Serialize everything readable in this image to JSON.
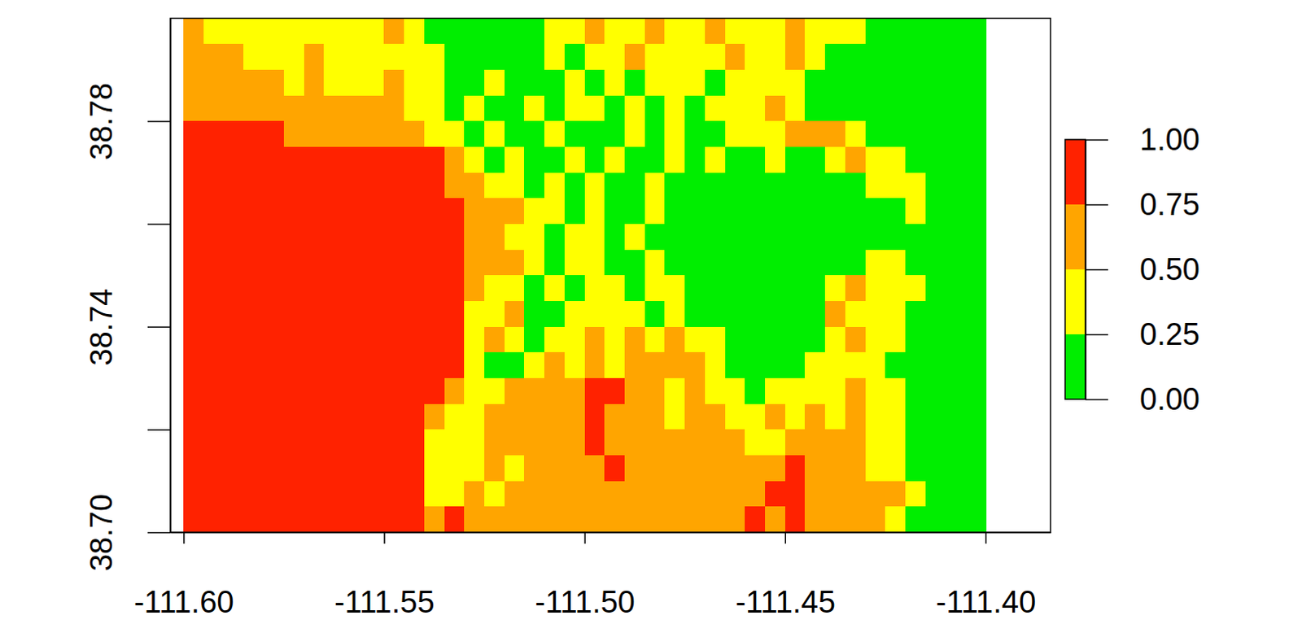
{
  "chart_data": {
    "type": "heatmap",
    "xlim": [
      -111.6033,
      -111.3838
    ],
    "ylim": [
      38.7,
      38.8
    ],
    "xticks": [
      {
        "value": -111.6,
        "label": "-111.60"
      },
      {
        "value": -111.55,
        "label": "-111.55"
      },
      {
        "value": -111.5,
        "label": "-111.50"
      },
      {
        "value": -111.45,
        "label": "-111.45"
      },
      {
        "value": -111.4,
        "label": "-111.40"
      }
    ],
    "yticks": [
      {
        "value": 38.7,
        "label": "38.70"
      },
      {
        "value": 38.72,
        "label": null
      },
      {
        "value": 38.74,
        "label": "38.74"
      },
      {
        "value": 38.76,
        "label": null
      },
      {
        "value": 38.78,
        "label": "38.78"
      }
    ],
    "x_bins": [
      -111.6,
      -111.595,
      -111.59,
      -111.585,
      -111.58,
      -111.575,
      -111.57,
      -111.565,
      -111.56,
      -111.555,
      -111.55,
      -111.545,
      -111.54,
      -111.535,
      -111.53,
      -111.525,
      -111.52,
      -111.515,
      -111.51,
      -111.505,
      -111.5,
      -111.495,
      -111.49,
      -111.485,
      -111.48,
      -111.475,
      -111.47,
      -111.465,
      -111.46,
      -111.455,
      -111.45,
      -111.445,
      -111.44,
      -111.435,
      -111.43,
      -111.425,
      -111.42,
      -111.415,
      -111.41,
      -111.405,
      -111.4
    ],
    "y_bins": [
      38.8,
      38.795,
      38.79,
      38.785,
      38.78,
      38.775,
      38.77,
      38.765,
      38.76,
      38.755,
      38.75,
      38.745,
      38.74,
      38.735,
      38.73,
      38.725,
      38.72,
      38.715,
      38.71,
      38.705,
      38.7
    ],
    "cells": [
      [
        0.6,
        0.4,
        0.4,
        0.4,
        0.4,
        0.4,
        0.4,
        0.4,
        0.4,
        0.4,
        0.6,
        0.4,
        0.1,
        0.1,
        0.1,
        0.1,
        0.1,
        0.1,
        0.4,
        0.4,
        0.6,
        0.4,
        0.4,
        0.6,
        0.4,
        0.4,
        0.6,
        0.4,
        0.4,
        0.4,
        0.6,
        0.4,
        0.4,
        0.4,
        0.1,
        0.1,
        0.1,
        0.1,
        0.1,
        0.1
      ],
      [
        0.6,
        0.6,
        0.6,
        0.4,
        0.4,
        0.4,
        0.6,
        0.4,
        0.4,
        0.4,
        0.4,
        0.4,
        0.4,
        0.1,
        0.1,
        0.1,
        0.1,
        0.1,
        0.4,
        0.1,
        0.4,
        0.4,
        0.6,
        0.4,
        0.4,
        0.4,
        0.4,
        0.6,
        0.4,
        0.4,
        0.6,
        0.4,
        0.1,
        0.1,
        0.1,
        0.1,
        0.1,
        0.1,
        0.1,
        0.1
      ],
      [
        0.6,
        0.6,
        0.6,
        0.6,
        0.6,
        0.4,
        0.6,
        0.4,
        0.4,
        0.4,
        0.6,
        0.4,
        0.4,
        0.1,
        0.1,
        0.4,
        0.1,
        0.1,
        0.1,
        0.4,
        0.1,
        0.4,
        0.1,
        0.4,
        0.4,
        0.4,
        0.1,
        0.4,
        0.4,
        0.4,
        0.4,
        0.1,
        0.1,
        0.1,
        0.1,
        0.1,
        0.1,
        0.1,
        0.1,
        0.1
      ],
      [
        0.6,
        0.6,
        0.6,
        0.6,
        0.6,
        0.6,
        0.6,
        0.6,
        0.6,
        0.6,
        0.6,
        0.4,
        0.4,
        0.1,
        0.4,
        0.1,
        0.1,
        0.4,
        0.1,
        0.4,
        0.4,
        0.1,
        0.4,
        0.1,
        0.4,
        0.1,
        0.4,
        0.4,
        0.4,
        0.6,
        0.4,
        0.1,
        0.1,
        0.1,
        0.1,
        0.1,
        0.1,
        0.1,
        0.1,
        0.1
      ],
      [
        0.9,
        0.9,
        0.9,
        0.9,
        0.9,
        0.6,
        0.6,
        0.6,
        0.6,
        0.6,
        0.6,
        0.6,
        0.4,
        0.4,
        0.1,
        0.4,
        0.1,
        0.1,
        0.4,
        0.1,
        0.1,
        0.1,
        0.4,
        0.1,
        0.4,
        0.1,
        0.1,
        0.4,
        0.4,
        0.4,
        0.6,
        0.6,
        0.6,
        0.4,
        0.1,
        0.1,
        0.1,
        0.1,
        0.1,
        0.1
      ],
      [
        0.9,
        0.9,
        0.9,
        0.9,
        0.9,
        0.9,
        0.9,
        0.9,
        0.9,
        0.9,
        0.9,
        0.9,
        0.9,
        0.6,
        0.4,
        0.1,
        0.4,
        0.1,
        0.1,
        0.4,
        0.1,
        0.4,
        0.1,
        0.1,
        0.4,
        0.1,
        0.4,
        0.1,
        0.1,
        0.4,
        0.1,
        0.1,
        0.4,
        0.6,
        0.4,
        0.4,
        0.1,
        0.1,
        0.1,
        0.1
      ],
      [
        0.9,
        0.9,
        0.9,
        0.9,
        0.9,
        0.9,
        0.9,
        0.9,
        0.9,
        0.9,
        0.9,
        0.9,
        0.9,
        0.6,
        0.6,
        0.4,
        0.4,
        0.1,
        0.4,
        0.1,
        0.4,
        0.1,
        0.1,
        0.4,
        0.1,
        0.1,
        0.1,
        0.1,
        0.1,
        0.1,
        0.1,
        0.1,
        0.1,
        0.1,
        0.4,
        0.4,
        0.4,
        0.1,
        0.1,
        0.1
      ],
      [
        0.9,
        0.9,
        0.9,
        0.9,
        0.9,
        0.9,
        0.9,
        0.9,
        0.9,
        0.9,
        0.9,
        0.9,
        0.9,
        0.9,
        0.6,
        0.6,
        0.6,
        0.4,
        0.4,
        0.1,
        0.4,
        0.1,
        0.1,
        0.4,
        0.1,
        0.1,
        0.1,
        0.1,
        0.1,
        0.1,
        0.1,
        0.1,
        0.1,
        0.1,
        0.1,
        0.1,
        0.4,
        0.1,
        0.1,
        0.1
      ],
      [
        0.9,
        0.9,
        0.9,
        0.9,
        0.9,
        0.9,
        0.9,
        0.9,
        0.9,
        0.9,
        0.9,
        0.9,
        0.9,
        0.9,
        0.6,
        0.6,
        0.4,
        0.4,
        0.1,
        0.4,
        0.4,
        0.1,
        0.4,
        0.1,
        0.1,
        0.1,
        0.1,
        0.1,
        0.1,
        0.1,
        0.1,
        0.1,
        0.1,
        0.1,
        0.1,
        0.1,
        0.1,
        0.1,
        0.1,
        0.1
      ],
      [
        0.9,
        0.9,
        0.9,
        0.9,
        0.9,
        0.9,
        0.9,
        0.9,
        0.9,
        0.9,
        0.9,
        0.9,
        0.9,
        0.9,
        0.6,
        0.6,
        0.6,
        0.4,
        0.1,
        0.4,
        0.4,
        0.1,
        0.1,
        0.4,
        0.1,
        0.1,
        0.1,
        0.1,
        0.1,
        0.1,
        0.1,
        0.1,
        0.1,
        0.1,
        0.4,
        0.4,
        0.1,
        0.1,
        0.1,
        0.1
      ],
      [
        0.9,
        0.9,
        0.9,
        0.9,
        0.9,
        0.9,
        0.9,
        0.9,
        0.9,
        0.9,
        0.9,
        0.9,
        0.9,
        0.9,
        0.6,
        0.4,
        0.4,
        0.1,
        0.4,
        0.1,
        0.4,
        0.4,
        0.1,
        0.4,
        0.4,
        0.1,
        0.1,
        0.1,
        0.1,
        0.1,
        0.1,
        0.1,
        0.4,
        0.6,
        0.4,
        0.4,
        0.4,
        0.1,
        0.1,
        0.1
      ],
      [
        0.9,
        0.9,
        0.9,
        0.9,
        0.9,
        0.9,
        0.9,
        0.9,
        0.9,
        0.9,
        0.9,
        0.9,
        0.9,
        0.9,
        0.4,
        0.4,
        0.6,
        0.1,
        0.1,
        0.4,
        0.4,
        0.4,
        0.4,
        0.1,
        0.4,
        0.1,
        0.1,
        0.1,
        0.1,
        0.1,
        0.1,
        0.1,
        0.6,
        0.4,
        0.4,
        0.4,
        0.1,
        0.1,
        0.1,
        0.1
      ],
      [
        0.9,
        0.9,
        0.9,
        0.9,
        0.9,
        0.9,
        0.9,
        0.9,
        0.9,
        0.9,
        0.9,
        0.9,
        0.9,
        0.9,
        0.4,
        0.6,
        0.4,
        0.1,
        0.4,
        0.4,
        0.6,
        0.4,
        0.6,
        0.4,
        0.6,
        0.4,
        0.4,
        0.1,
        0.1,
        0.1,
        0.1,
        0.1,
        0.4,
        0.6,
        0.4,
        0.4,
        0.1,
        0.1,
        0.1,
        0.1
      ],
      [
        0.9,
        0.9,
        0.9,
        0.9,
        0.9,
        0.9,
        0.9,
        0.9,
        0.9,
        0.9,
        0.9,
        0.9,
        0.9,
        0.9,
        0.4,
        0.1,
        0.1,
        0.4,
        0.6,
        0.4,
        0.6,
        0.4,
        0.6,
        0.6,
        0.6,
        0.6,
        0.4,
        0.1,
        0.1,
        0.1,
        0.1,
        0.4,
        0.4,
        0.4,
        0.4,
        0.1,
        0.1,
        0.1,
        0.1,
        0.1
      ],
      [
        0.9,
        0.9,
        0.9,
        0.9,
        0.9,
        0.9,
        0.9,
        0.9,
        0.9,
        0.9,
        0.9,
        0.9,
        0.9,
        0.6,
        0.4,
        0.4,
        0.6,
        0.6,
        0.6,
        0.6,
        0.9,
        0.9,
        0.6,
        0.6,
        0.4,
        0.6,
        0.4,
        0.4,
        0.1,
        0.4,
        0.4,
        0.4,
        0.4,
        0.6,
        0.4,
        0.4,
        0.1,
        0.1,
        0.1,
        0.1
      ],
      [
        0.9,
        0.9,
        0.9,
        0.9,
        0.9,
        0.9,
        0.9,
        0.9,
        0.9,
        0.9,
        0.9,
        0.9,
        0.6,
        0.4,
        0.4,
        0.6,
        0.6,
        0.6,
        0.6,
        0.6,
        0.9,
        0.6,
        0.6,
        0.6,
        0.4,
        0.6,
        0.6,
        0.4,
        0.4,
        0.6,
        0.4,
        0.6,
        0.4,
        0.6,
        0.4,
        0.4,
        0.1,
        0.1,
        0.1,
        0.1
      ],
      [
        0.9,
        0.9,
        0.9,
        0.9,
        0.9,
        0.9,
        0.9,
        0.9,
        0.9,
        0.9,
        0.9,
        0.9,
        0.4,
        0.4,
        0.4,
        0.6,
        0.6,
        0.6,
        0.6,
        0.6,
        0.9,
        0.6,
        0.6,
        0.6,
        0.6,
        0.6,
        0.6,
        0.6,
        0.4,
        0.4,
        0.6,
        0.6,
        0.6,
        0.6,
        0.4,
        0.4,
        0.1,
        0.1,
        0.1,
        0.1
      ],
      [
        0.9,
        0.9,
        0.9,
        0.9,
        0.9,
        0.9,
        0.9,
        0.9,
        0.9,
        0.9,
        0.9,
        0.9,
        0.4,
        0.4,
        0.4,
        0.6,
        0.4,
        0.6,
        0.6,
        0.6,
        0.6,
        0.9,
        0.6,
        0.6,
        0.6,
        0.6,
        0.6,
        0.6,
        0.6,
        0.6,
        0.9,
        0.6,
        0.6,
        0.6,
        0.4,
        0.4,
        0.1,
        0.1,
        0.1,
        0.1
      ],
      [
        0.9,
        0.9,
        0.9,
        0.9,
        0.9,
        0.9,
        0.9,
        0.9,
        0.9,
        0.9,
        0.9,
        0.9,
        0.4,
        0.4,
        0.6,
        0.4,
        0.6,
        0.6,
        0.6,
        0.6,
        0.6,
        0.6,
        0.6,
        0.6,
        0.6,
        0.6,
        0.6,
        0.6,
        0.6,
        0.9,
        0.9,
        0.6,
        0.6,
        0.6,
        0.6,
        0.6,
        0.4,
        0.1,
        0.1,
        0.1
      ],
      [
        0.9,
        0.9,
        0.9,
        0.9,
        0.9,
        0.9,
        0.9,
        0.9,
        0.9,
        0.9,
        0.9,
        0.9,
        0.6,
        0.9,
        0.6,
        0.6,
        0.6,
        0.6,
        0.6,
        0.6,
        0.6,
        0.6,
        0.6,
        0.6,
        0.6,
        0.6,
        0.6,
        0.6,
        0.9,
        0.6,
        0.9,
        0.6,
        0.6,
        0.6,
        0.6,
        0.4,
        0.1,
        0.1,
        0.1,
        0.1
      ]
    ],
    "colorbar": {
      "lim": [
        0,
        1
      ],
      "ticks": [
        {
          "value": 0,
          "label": "0.00"
        },
        {
          "value": 0.25,
          "label": "0.25"
        },
        {
          "value": 0.5,
          "label": "0.50"
        },
        {
          "value": 0.75,
          "label": "0.75"
        },
        {
          "value": 1,
          "label": "1.00"
        }
      ],
      "colors": [
        "#00EE00",
        "#FFFF00",
        "#FFA500",
        "#FF2200"
      ]
    }
  }
}
